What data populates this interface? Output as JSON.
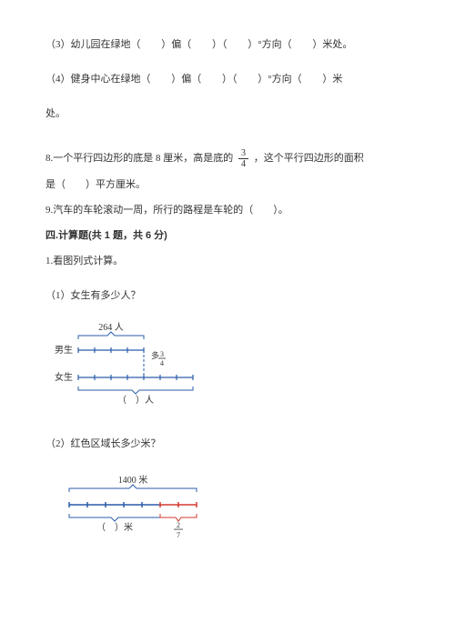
{
  "q3": {
    "text_a": "（3）幼儿园在绿地（",
    "text_b": "）偏（",
    "text_c": "）（",
    "text_d": "）°方向（",
    "text_e": "）米处。"
  },
  "q4": {
    "text_a": "（4）健身中心在绿地（",
    "text_b": "）偏（",
    "text_c": "）（",
    "text_d": "）°方向（",
    "text_e": "）米",
    "text_f": "处。"
  },
  "q8": {
    "text_a": "8.一个平行四边形的底是 8 厘米，高是底的 ",
    "frac_num": "3",
    "frac_den": "4",
    "text_b": " ，这个平行四边形的面积",
    "text_c": "是（　　）平方厘米。"
  },
  "q9": "9.汽车的车轮滚动一周，所行的路程是车轮的（　　）。",
  "section4": {
    "heading": "四.计算题(共 1 题，共 6 分)",
    "q1": "1.看图列式计算。",
    "sub1": "（1）女生有多少人？",
    "sub2": "（2）红色区域长多少米？"
  },
  "diagram1": {
    "top_label": "264 人",
    "row1_label": "男生",
    "row2_label": "女生",
    "frac_label_num": "3",
    "frac_label_den": "4",
    "frac_prefix": "多",
    "bottom_label": "（　）人",
    "bar_color": "#2a5caa",
    "tick_color": "#2a5caa",
    "dash_color": "#2a5caa",
    "segments_row1": 4,
    "segments_row2": 7,
    "seg_width": 18,
    "tick_height": 6
  },
  "diagram2": {
    "top_label": "1400 米",
    "bottom_left_label": "（　）米",
    "frac_num": "2",
    "frac_den": "7",
    "bar_color": "#2a5caa",
    "red_color": "#d43a2f",
    "segments_total": 7,
    "segments_red": 2,
    "seg_width": 20,
    "tick_height": 6
  }
}
